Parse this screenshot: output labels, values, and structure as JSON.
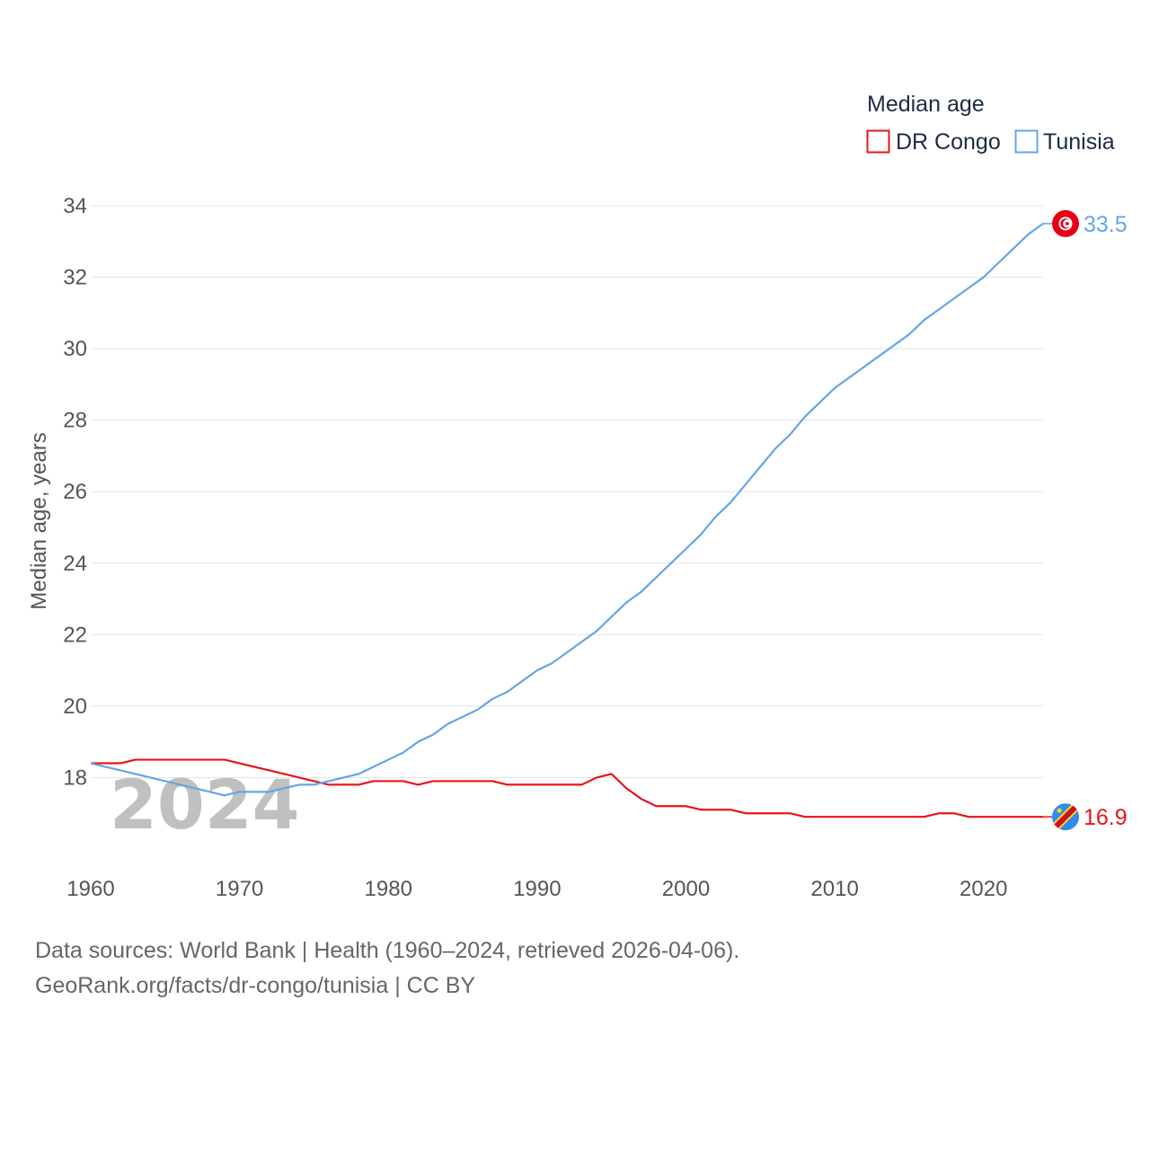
{
  "chart_data": {
    "type": "line",
    "title": "",
    "ylabel": "Median age, years",
    "xlabel": "",
    "xlim": [
      1960,
      2024
    ],
    "ylim": [
      16,
      34
    ],
    "x_ticks": [
      1960,
      1970,
      1980,
      1990,
      2000,
      2010,
      2020
    ],
    "y_ticks": [
      18,
      20,
      22,
      24,
      26,
      28,
      30,
      32,
      34
    ],
    "year_label": "2024",
    "legend": {
      "title": "Median age",
      "position": "top-right"
    },
    "x": [
      1960,
      1961,
      1962,
      1963,
      1964,
      1965,
      1966,
      1967,
      1968,
      1969,
      1970,
      1971,
      1972,
      1973,
      1974,
      1975,
      1976,
      1977,
      1978,
      1979,
      1980,
      1981,
      1982,
      1983,
      1984,
      1985,
      1986,
      1987,
      1988,
      1989,
      1990,
      1991,
      1992,
      1993,
      1994,
      1995,
      1996,
      1997,
      1998,
      1999,
      2000,
      2001,
      2002,
      2003,
      2004,
      2005,
      2006,
      2007,
      2008,
      2009,
      2010,
      2011,
      2012,
      2013,
      2014,
      2015,
      2016,
      2017,
      2018,
      2019,
      2020,
      2021,
      2022,
      2023,
      2024
    ],
    "series": [
      {
        "name": "DR Congo",
        "color": "#e8141b",
        "end_label": "16.9",
        "flag": "dr-congo-flag-icon",
        "values": [
          18.4,
          18.4,
          18.4,
          18.5,
          18.5,
          18.5,
          18.5,
          18.5,
          18.5,
          18.5,
          18.4,
          18.3,
          18.2,
          18.1,
          18.0,
          17.9,
          17.8,
          17.8,
          17.8,
          17.9,
          17.9,
          17.9,
          17.8,
          17.9,
          17.9,
          17.9,
          17.9,
          17.9,
          17.8,
          17.8,
          17.8,
          17.8,
          17.8,
          17.8,
          18.0,
          18.1,
          17.7,
          17.4,
          17.2,
          17.2,
          17.2,
          17.1,
          17.1,
          17.1,
          17.0,
          17.0,
          17.0,
          17.0,
          16.9,
          16.9,
          16.9,
          16.9,
          16.9,
          16.9,
          16.9,
          16.9,
          16.9,
          17.0,
          17.0,
          16.9,
          16.9,
          16.9,
          16.9,
          16.9,
          16.9
        ]
      },
      {
        "name": "Tunisia",
        "color": "#62a6e8",
        "end_label": "33.5",
        "flag": "tunisia-flag-icon",
        "values": [
          18.4,
          18.3,
          18.2,
          18.1,
          18.0,
          17.9,
          17.8,
          17.7,
          17.6,
          17.5,
          17.6,
          17.6,
          17.6,
          17.7,
          17.8,
          17.8,
          17.9,
          18.0,
          18.1,
          18.3,
          18.5,
          18.7,
          19.0,
          19.2,
          19.5,
          19.7,
          19.9,
          20.2,
          20.4,
          20.7,
          21.0,
          21.2,
          21.5,
          21.8,
          22.1,
          22.5,
          22.9,
          23.2,
          23.6,
          24.0,
          24.4,
          24.8,
          25.3,
          25.7,
          26.2,
          26.7,
          27.2,
          27.6,
          28.1,
          28.5,
          28.9,
          29.2,
          29.5,
          29.8,
          30.1,
          30.4,
          30.8,
          31.1,
          31.4,
          31.7,
          32.0,
          32.4,
          32.8,
          33.2,
          33.5
        ]
      }
    ]
  },
  "footer": {
    "sources": "Data sources: World Bank | Health (1960–2024, retrieved 2026-04-06).",
    "url": "GeoRank.org/facts/dr-congo/tunisia | CC BY"
  }
}
